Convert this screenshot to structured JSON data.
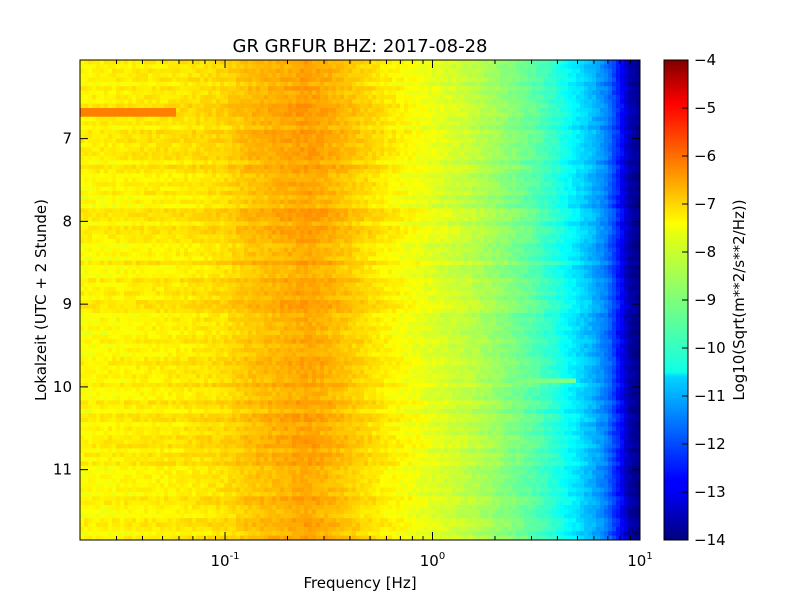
{
  "chart_data": {
    "type": "heatmap",
    "title": "GR GRFUR BHZ: 2017-08-28",
    "xlabel": "Frequency [Hz]",
    "ylabel": "Lokalzeit (UTC + 2 Stunde)",
    "xscale": "log",
    "xlim": [
      0.02,
      10
    ],
    "x_ticks": [
      {
        "value": 0.1,
        "base": "10",
        "exp": "-1"
      },
      {
        "value": 1,
        "base": "10",
        "exp": "0"
      },
      {
        "value": 10,
        "base": "10",
        "exp": "1"
      }
    ],
    "ylim": [
      6.05,
      11.85
    ],
    "y_inverted": true,
    "y_ticks": [
      7,
      8,
      9,
      10,
      11
    ],
    "colorbar": {
      "label": "Log10(Sqrt(m**2/s**2/Hz))",
      "min": -14,
      "max": -4,
      "ticks": [
        -4,
        -5,
        -6,
        -7,
        -8,
        -9,
        -10,
        -11,
        -12,
        -13,
        -14
      ],
      "colormap": "jet"
    },
    "spectrum_profile": {
      "frequency_hz": [
        0.02,
        0.04,
        0.06,
        0.1,
        0.13,
        0.2,
        0.25,
        0.3,
        0.4,
        0.6,
        1.0,
        1.5,
        2.0,
        3.0,
        4.0,
        5.0,
        6.0,
        7.0,
        8.0,
        9.0,
        10.0
      ],
      "level": [
        -7.7,
        -7.6,
        -7.55,
        -7.4,
        -7.15,
        -6.95,
        -6.85,
        -6.95,
        -7.2,
        -7.6,
        -8.0,
        -8.35,
        -8.7,
        -9.3,
        -9.9,
        -10.5,
        -11.0,
        -11.6,
        -12.6,
        -13.6,
        -13.9
      ]
    },
    "features": [
      {
        "description": "stronger band at low frequencies",
        "time_start": 6.63,
        "time_end": 6.73,
        "freq_min": 0.02,
        "freq_max": 0.058,
        "level": -6.5
      },
      {
        "description": "narrow spike",
        "time_start": 9.9,
        "time_end": 9.96,
        "freq_min": 2.5,
        "freq_max": 5.0,
        "level": -9.0
      }
    ]
  }
}
